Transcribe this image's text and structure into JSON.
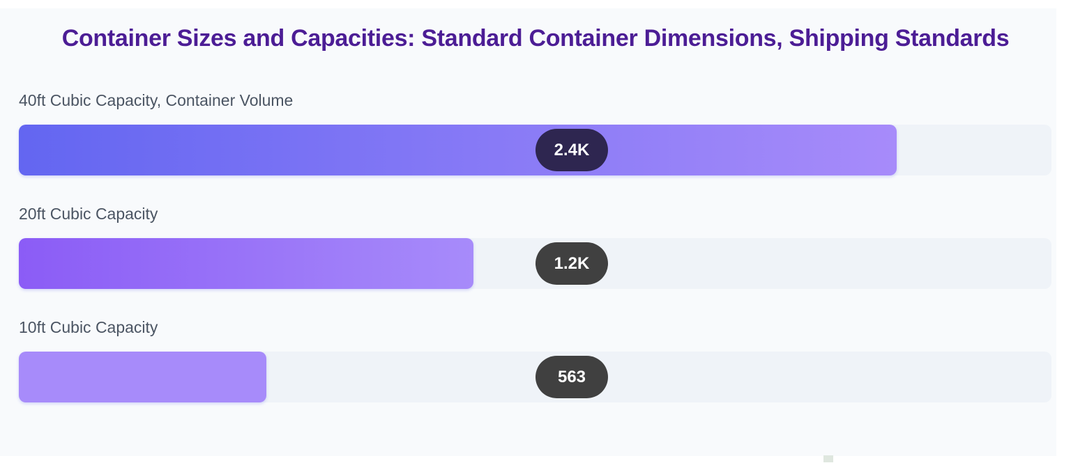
{
  "chart_data": {
    "type": "bar",
    "orientation": "horizontal",
    "title": "Container Sizes and Capacities: Standard Container Dimensions, Shipping Standards",
    "categories": [
      "40ft Cubic Capacity, Container Volume",
      "20ft Cubic Capacity",
      "10ft Cubic Capacity"
    ],
    "values": [
      2400,
      1200,
      563
    ],
    "value_labels": [
      "2.4K",
      "1.2K",
      "563"
    ],
    "fill_percent": [
      85,
      44,
      24
    ],
    "colors": [
      {
        "from": "#6366f1",
        "to": "#a78bfa",
        "badge": "#2e2650"
      },
      {
        "from": "#8b5cf6",
        "to": "#a78bfa",
        "badge": "#404040"
      },
      {
        "from": "#a78bfa",
        "to": "#a78bfa",
        "badge": "#404040"
      }
    ],
    "grid": false,
    "legend": "none"
  }
}
